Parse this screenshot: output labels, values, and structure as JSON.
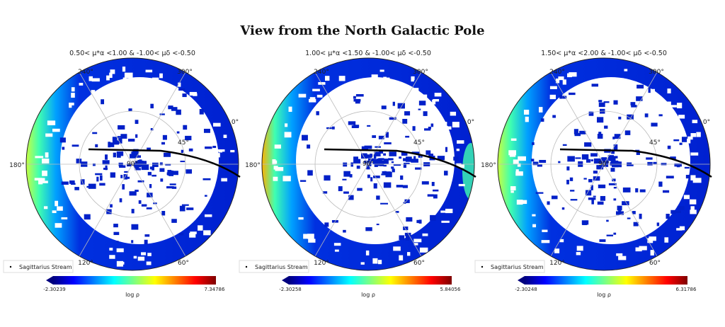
{
  "title": "View from the North Galactic Pole",
  "chart_data": [
    {
      "type": "heatmap",
      "projection": "polar (North Galactic Pole)",
      "title": "0.50< μ*α <1.00 & -1.00< μδ <-0.50",
      "colorbar_label": "log ρ",
      "colorbar_min": "-2.30239",
      "colorbar_max": "7.34786",
      "colormap": "jet",
      "azimuth_ticks": [
        "0°",
        "60°",
        "120°",
        "180°",
        "240°",
        "300°"
      ],
      "radial_ticks": [
        "45°",
        "90°"
      ],
      "legend": "Sagittarius Stream",
      "legend_position": "bottom-left",
      "peak_side": "180° (left edge)",
      "peak_level": 0.55
    },
    {
      "type": "heatmap",
      "projection": "polar (North Galactic Pole)",
      "title": "1.00< μ*α <1.50 & -1.00< μδ <-0.50",
      "colorbar_label": "log ρ",
      "colorbar_min": "-2.30258",
      "colorbar_max": "5.84056",
      "colormap": "jet",
      "azimuth_ticks": [
        "0°",
        "60°",
        "120°",
        "180°",
        "240°",
        "300°"
      ],
      "radial_ticks": [
        "45°",
        "90°"
      ],
      "legend": "Sagittarius Stream",
      "legend_position": "bottom-left",
      "peak_side": "180° (left edge)",
      "peak_level": 0.8
    },
    {
      "type": "heatmap",
      "projection": "polar (North Galactic Pole)",
      "title": "1.50< μ*α <2.00 & -1.00< μδ <-0.50",
      "colorbar_label": "log ρ",
      "colorbar_min": "-2.30248",
      "colorbar_max": "6.31786",
      "colormap": "jet",
      "azimuth_ticks": [
        "0°",
        "60°",
        "120°",
        "180°",
        "240°",
        "300°"
      ],
      "radial_ticks": [
        "45°",
        "90°"
      ],
      "legend": "Sagittarius Stream",
      "legend_position": "bottom-left",
      "peak_side": "180° (left edge)",
      "peak_level": 0.5
    }
  ]
}
